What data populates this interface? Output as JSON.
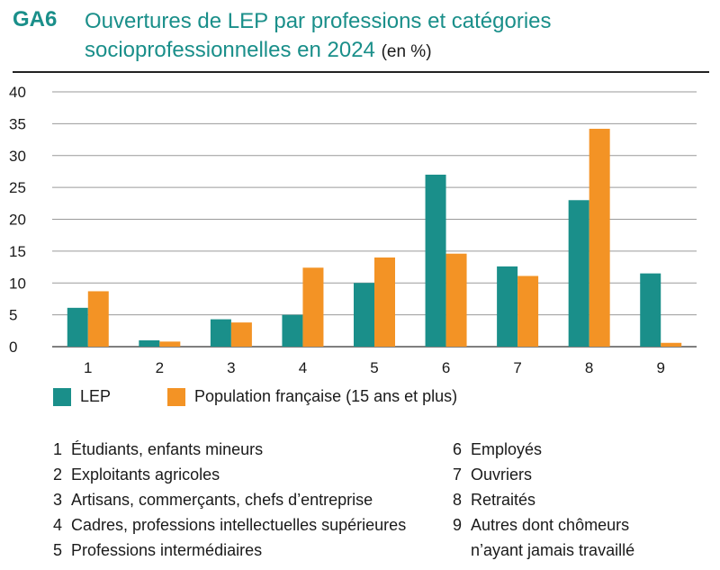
{
  "header": {
    "code": "GA6",
    "title_line1": "Ouvertures de LEP par professions et catégories",
    "title_line2": "socioprofessionnelles en 2024",
    "unit": "(en %)"
  },
  "colors": {
    "lep": "#1a8f8a",
    "population": "#f39325",
    "title": "#1a8f8a",
    "grid": "#9a9a9a"
  },
  "chart_data": {
    "type": "bar",
    "categories": [
      "1",
      "2",
      "3",
      "4",
      "5",
      "6",
      "7",
      "8",
      "9"
    ],
    "series": [
      {
        "name": "LEP",
        "values": [
          6.1,
          1.0,
          4.3,
          5.0,
          10.0,
          27.0,
          12.6,
          23.0,
          11.5
        ]
      },
      {
        "name": "Population française (15 ans et plus)",
        "values": [
          8.7,
          0.8,
          3.8,
          12.4,
          14.0,
          14.6,
          11.1,
          34.2,
          0.6
        ]
      }
    ],
    "yticks": [
      "0",
      "5",
      "10",
      "15",
      "20",
      "25",
      "30",
      "35",
      "40"
    ],
    "ylim": [
      0,
      40
    ],
    "grid": true,
    "legend_position": "bottom-left"
  },
  "legend": {
    "lep": "LEP",
    "population": "Population française (15 ans et plus)"
  },
  "notes": [
    {
      "num": "1",
      "text": "Étudiants, enfants mineurs"
    },
    {
      "num": "2",
      "text": "Exploitants agricoles"
    },
    {
      "num": "3",
      "text": "Artisans, commerçants, chefs d’entreprise"
    },
    {
      "num": "4",
      "text": "Cadres, professions intellectuelles supérieures"
    },
    {
      "num": "5",
      "text": "Professions intermédiaires"
    },
    {
      "num": "6",
      "text": "Employés"
    },
    {
      "num": "7",
      "text": "Ouvriers"
    },
    {
      "num": "8",
      "text": "Retraités"
    },
    {
      "num": "9",
      "text": "Autres dont chômeurs"
    }
  ],
  "note9_cont": "n’ayant jamais travaillé"
}
